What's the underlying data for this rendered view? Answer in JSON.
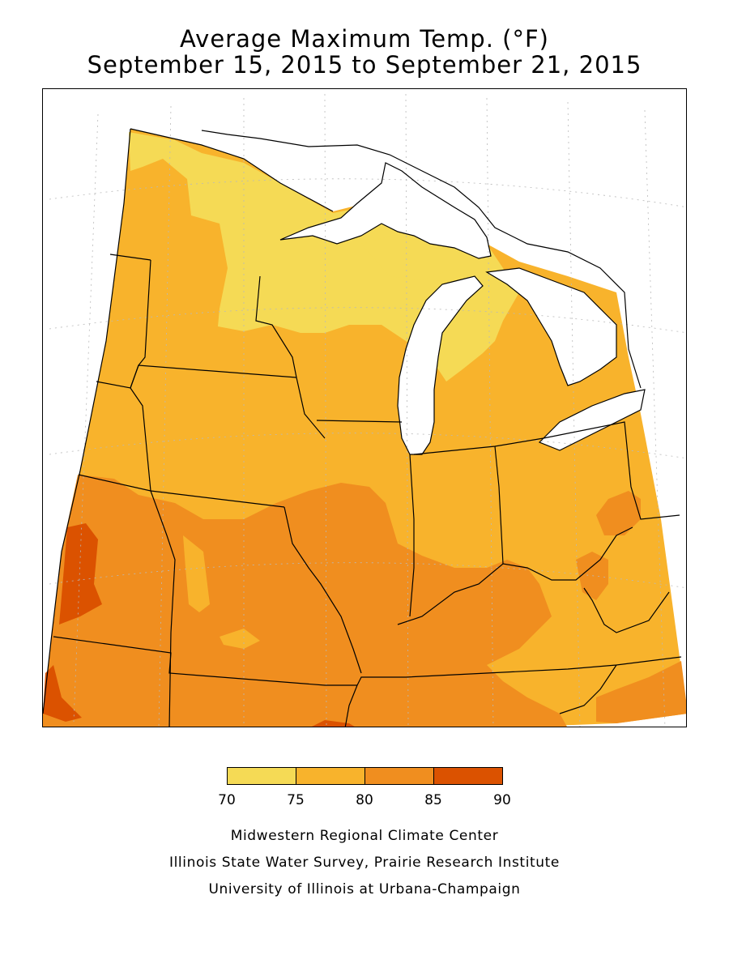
{
  "title": {
    "line1": "Average Maximum Temp. (°F)",
    "line2": "September 15, 2015 to September 21, 2015"
  },
  "legend": {
    "bins": [
      {
        "from": 70,
        "to": 75,
        "color": "#f5da55"
      },
      {
        "from": 75,
        "to": 80,
        "color": "#f8b32c"
      },
      {
        "from": 80,
        "to": 85,
        "color": "#f08e1f"
      },
      {
        "from": 85,
        "to": 90,
        "color": "#db5200"
      }
    ],
    "ticks": [
      "70",
      "75",
      "80",
      "85",
      "90"
    ]
  },
  "colors": {
    "lake": "#ffffff",
    "border": "#000000",
    "grid": "#b9b9b9"
  },
  "credits": [
    "Midwestern Regional Climate Center",
    "Illinois State Water Survey, Prairie Research Institute",
    "University of Illinois at Urbana-Champaign"
  ]
}
